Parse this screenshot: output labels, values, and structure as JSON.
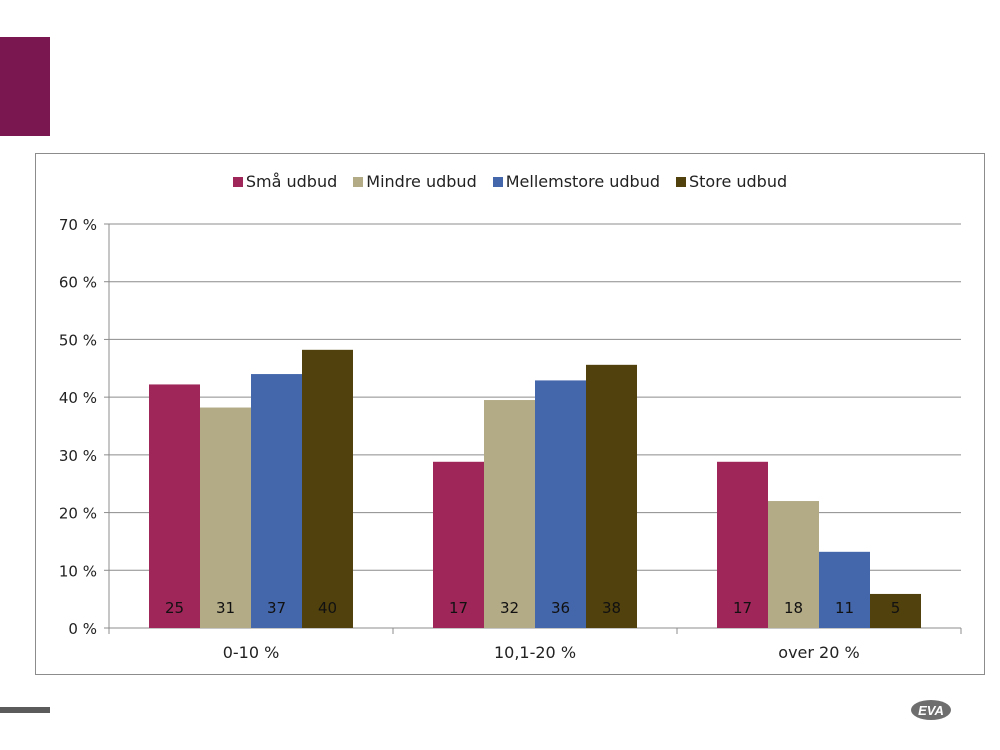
{
  "chart_data": {
    "type": "bar",
    "categories": [
      "0-10 %",
      "10,1-20 %",
      "over 20 %"
    ],
    "series": [
      {
        "name": "Små udbud",
        "color": "#9e2659",
        "values": [
          42.2,
          28.8,
          28.8
        ],
        "labels": [
          "25",
          "17",
          "17"
        ]
      },
      {
        "name": "Mindre udbud",
        "color": "#b3aa86",
        "values": [
          38.2,
          39.5,
          22.0
        ],
        "labels": [
          "31",
          "32",
          "18"
        ]
      },
      {
        "name": "Mellemstore udbud",
        "color": "#4467ab",
        "values": [
          44.0,
          42.9,
          13.2
        ],
        "labels": [
          "37",
          "36",
          "11"
        ]
      },
      {
        "name": "Store udbud",
        "color": "#51410d",
        "values": [
          48.2,
          45.6,
          5.9
        ],
        "labels": [
          "40",
          "38",
          "5"
        ]
      }
    ],
    "yticks": [
      "0 %",
      "10 %",
      "20 %",
      "30 %",
      "40 %",
      "50 %",
      "60 %",
      "70 %"
    ],
    "ylim": [
      0,
      70
    ],
    "grid": true,
    "legend_position": "top"
  },
  "logo": {
    "text": "EVA"
  },
  "colors": {
    "accent": "#7a1650",
    "footer_bar": "#5b5b5b"
  }
}
